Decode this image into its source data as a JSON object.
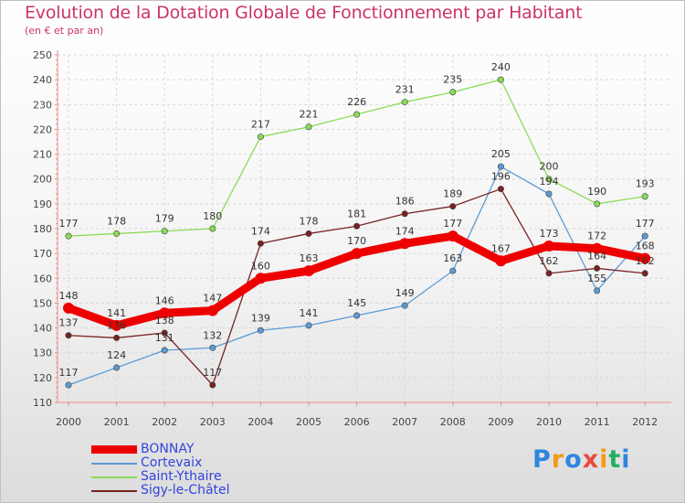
{
  "chart_data": {
    "type": "line",
    "title": "Evolution de la Dotation Globale de Fonctionnement par Habitant",
    "subtitle": "(en € et par an)",
    "x": [
      "2000",
      "2001",
      "2002",
      "2003",
      "2004",
      "2005",
      "2006",
      "2007",
      "2008",
      "2009",
      "2010",
      "2011",
      "2012"
    ],
    "ylim": [
      110,
      250
    ],
    "yticks": [
      110,
      120,
      130,
      140,
      150,
      160,
      170,
      180,
      190,
      200,
      210,
      220,
      230,
      240,
      250
    ],
    "grid": true,
    "series": [
      {
        "name": "BONNAY",
        "color": "#ee0000",
        "values": [
          148,
          141,
          146,
          147,
          160,
          163,
          170,
          174,
          177,
          167,
          173,
          172,
          168
        ]
      },
      {
        "name": "Cortevaix",
        "color": "#5b9bd5",
        "values": [
          117,
          124,
          131,
          132,
          139,
          141,
          145,
          149,
          163,
          205,
          194,
          155,
          177
        ]
      },
      {
        "name": "Saint-Ythaire",
        "color": "#88dd55",
        "values": [
          177,
          178,
          179,
          180,
          217,
          221,
          226,
          231,
          235,
          240,
          200,
          190,
          193
        ]
      },
      {
        "name": "Sigy-le-Châtel",
        "color": "#772222",
        "values": [
          137,
          136,
          138,
          117,
          174,
          178,
          181,
          186,
          189,
          196,
          162,
          164,
          162
        ]
      }
    ]
  },
  "logo": {
    "letters": [
      "P",
      "r",
      "o",
      "x",
      "i",
      "t",
      "i"
    ],
    "colors": [
      "#2e86de",
      "#f39c12",
      "#2e86de",
      "#e74c3c",
      "#f39c12",
      "#27ae60",
      "#2e86de"
    ]
  }
}
